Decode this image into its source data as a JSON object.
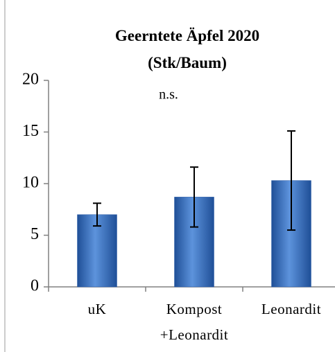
{
  "chart_data": {
    "type": "bar",
    "title": "Geerntete Äpfel 2020\n(Stk/Baum)",
    "annotation": "n.s.",
    "categories": [
      "uK",
      "Kompost\n+Leonardit",
      "Leonardit"
    ],
    "values": [
      7.0,
      8.7,
      10.3
    ],
    "errors": [
      1.1,
      2.9,
      4.8
    ],
    "color": "#3a73c4",
    "ylim": [
      0,
      20
    ],
    "yticks": [
      0,
      5,
      10,
      15,
      20
    ],
    "grid": false
  }
}
